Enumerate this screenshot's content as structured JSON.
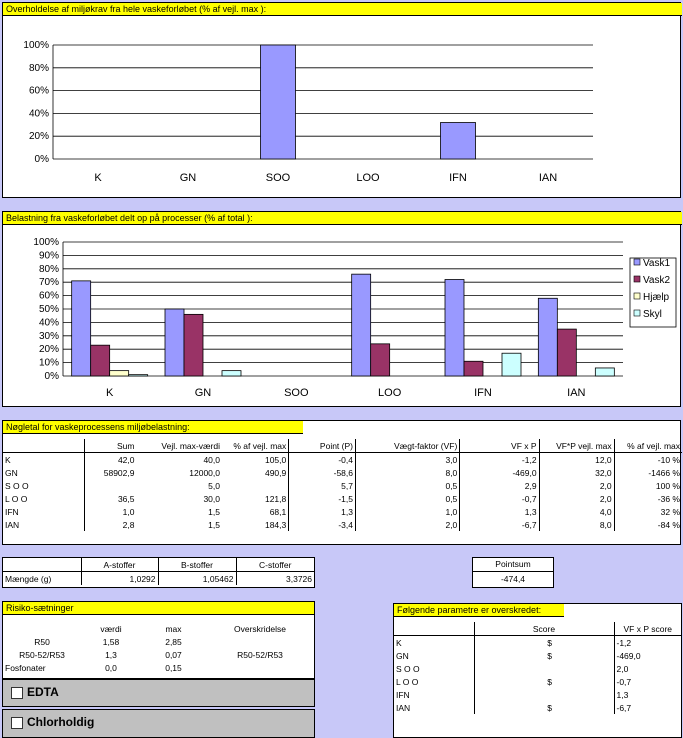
{
  "chart1": {
    "title": "Overholdelse af miljøkrav fra hele vaskeforløbet (% af vejl. max ):",
    "chart_data": {
      "type": "bar",
      "categories": [
        "K",
        "GN",
        "SOO",
        "LOO",
        "IFN",
        "IAN"
      ],
      "values": [
        0,
        0,
        100,
        0,
        32,
        0
      ],
      "ylim": [
        0,
        100
      ],
      "yticks": [
        "0%",
        "20%",
        "40%",
        "60%",
        "80%",
        "100%"
      ],
      "color": "#9999ff"
    }
  },
  "chart2": {
    "title": "Belastning fra vaskeforløbet delt op på processer (% af total ):",
    "chart_data": {
      "type": "bar",
      "categories": [
        "K",
        "GN",
        "SOO",
        "LOO",
        "IFN",
        "IAN"
      ],
      "ylim": [
        0,
        100
      ],
      "yticks": [
        "0%",
        "10%",
        "20%",
        "30%",
        "40%",
        "50%",
        "60%",
        "70%",
        "80%",
        "90%",
        "100%"
      ],
      "series": [
        {
          "name": "Vask1",
          "color": "#9999ff",
          "values": [
            71,
            50,
            0,
            76,
            72,
            58
          ]
        },
        {
          "name": "Vask2",
          "color": "#993366",
          "values": [
            23,
            46,
            0,
            24,
            11,
            35
          ]
        },
        {
          "name": "Hjælp",
          "color": "#ffffcc",
          "values": [
            4,
            0,
            0,
            0,
            0,
            0
          ]
        },
        {
          "name": "Skyl",
          "color": "#ccffff",
          "values": [
            1,
            4,
            0,
            0,
            17,
            6
          ]
        }
      ],
      "legend": "right"
    }
  },
  "keys": {
    "title": "Nøgletal for vaskeprocessens miljøbelastning:",
    "headers": [
      "",
      "Sum",
      "Vejl. max-værdi",
      "% af vejl. max",
      "Point (P)",
      "Vægt-faktor (VF)",
      "VF x P",
      "VF*P vejl. max",
      "% af vejl. max"
    ],
    "rows": [
      [
        "K",
        "42,0",
        "40,0",
        "105,0",
        "-0,4",
        "3,0",
        "-1,2",
        "12,0",
        "-10 %"
      ],
      [
        "GN",
        "58902,9",
        "12000,0",
        "490,9",
        "-58,6",
        "8,0",
        "-469,0",
        "32,0",
        "-1466 %"
      ],
      [
        "S O O",
        "",
        "5,0",
        "",
        "5,7",
        "0,5",
        "2,9",
        "2,0",
        "100 %"
      ],
      [
        "L O O",
        "36,5",
        "30,0",
        "121,8",
        "-1,5",
        "0,5",
        "-0,7",
        "2,0",
        "-36 %"
      ],
      [
        "IFN",
        "1,0",
        "1,5",
        "68,1",
        "1,3",
        "1,0",
        "1,3",
        "4,0",
        "32 %"
      ],
      [
        "IAN",
        "2,8",
        "1,5",
        "184,3",
        "-3,4",
        "2,0",
        "-6,7",
        "8,0",
        "-84 %"
      ]
    ]
  },
  "stoffer": {
    "headers": [
      "",
      "A-stoffer",
      "B-stoffer",
      "C-stoffer"
    ],
    "row": [
      "Mængde (g)",
      "1,0292",
      "1,05462",
      "3,3726"
    ]
  },
  "pointsum": {
    "label": "Pointsum",
    "value": "-474,4"
  },
  "risiko": {
    "title": "Risiko-sætninger",
    "headers": [
      "",
      "værdi",
      "max",
      "Overskridelse"
    ],
    "rows": [
      [
        "R50",
        "1,58",
        "2,85",
        ""
      ],
      [
        "R50-52/R53",
        "1,3",
        "0,07",
        "R50-52/R53"
      ],
      [
        "Fosfonater",
        "0,0",
        "0,15",
        ""
      ]
    ],
    "edta": "EDTA",
    "chlorholdig": "Chlorholdig"
  },
  "exceeded": {
    "title": "Følgende parametre er overskredet:",
    "headers": [
      "",
      "Score",
      "VF x P score"
    ],
    "rows": [
      [
        "K",
        "$",
        "-1,2"
      ],
      [
        "GN",
        "$",
        "-469,0"
      ],
      [
        "S O O",
        "",
        "2,0"
      ],
      [
        "L O O",
        "$",
        "-0,7"
      ],
      [
        "IFN",
        "",
        "1,3"
      ],
      [
        "IAN",
        "$",
        "-6,7"
      ]
    ]
  }
}
